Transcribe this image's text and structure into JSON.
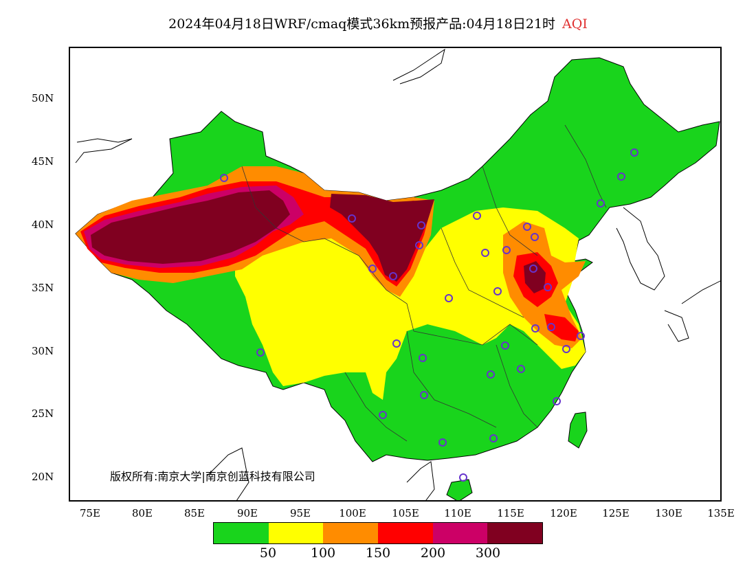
{
  "title": {
    "text": "2024年04月18日WRF/cmaq模式36km预报产品:04月18日21时",
    "variable": "AQI",
    "variable_color": "#e03030"
  },
  "axes": {
    "y_labels": [
      "50N",
      "45N",
      "40N",
      "35N",
      "30N",
      "25N",
      "20N"
    ],
    "x_labels": [
      "75E",
      "80E",
      "85E",
      "90E",
      "95E",
      "100E",
      "105E",
      "110E",
      "115E",
      "120E",
      "125E",
      "130E",
      "135E"
    ]
  },
  "copyright": "版权所有:南京大学|南京创蓝科技有限公司",
  "legend": {
    "colors": [
      "#19d41c",
      "#ffff00",
      "#ff8c00",
      "#ff0000",
      "#cc0066",
      "#800020"
    ],
    "labels": [
      "50",
      "100",
      "150",
      "200",
      "300"
    ]
  }
}
